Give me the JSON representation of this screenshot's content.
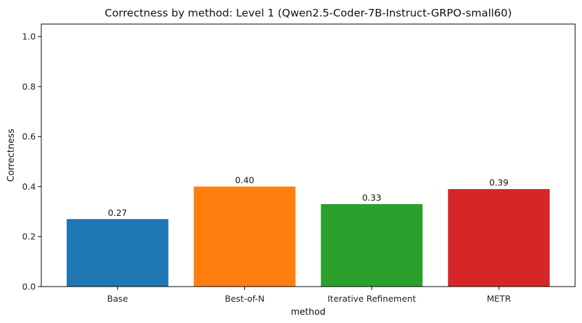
{
  "chart_data": {
    "type": "bar",
    "title": "Correctness by method: Level 1 (Qwen2.5-Coder-7B-Instruct-GRPO-small60)",
    "xlabel": "method",
    "ylabel": "Correctness",
    "categories": [
      "Base",
      "Best-of-N",
      "Iterative Refinement",
      "METR"
    ],
    "values": [
      0.27,
      0.4,
      0.33,
      0.39
    ],
    "value_labels": [
      "0.27",
      "0.40",
      "0.33",
      "0.39"
    ],
    "colors": [
      "#1f77b4",
      "#ff7f0e",
      "#2ca02c",
      "#d62728"
    ],
    "ylim": [
      0,
      1.05
    ],
    "yticks": [
      0.0,
      0.2,
      0.4,
      0.6,
      0.8,
      1.0
    ],
    "ytick_labels": [
      "0.0",
      "0.2",
      "0.4",
      "0.6",
      "0.8",
      "1.0"
    ],
    "grid": false
  }
}
